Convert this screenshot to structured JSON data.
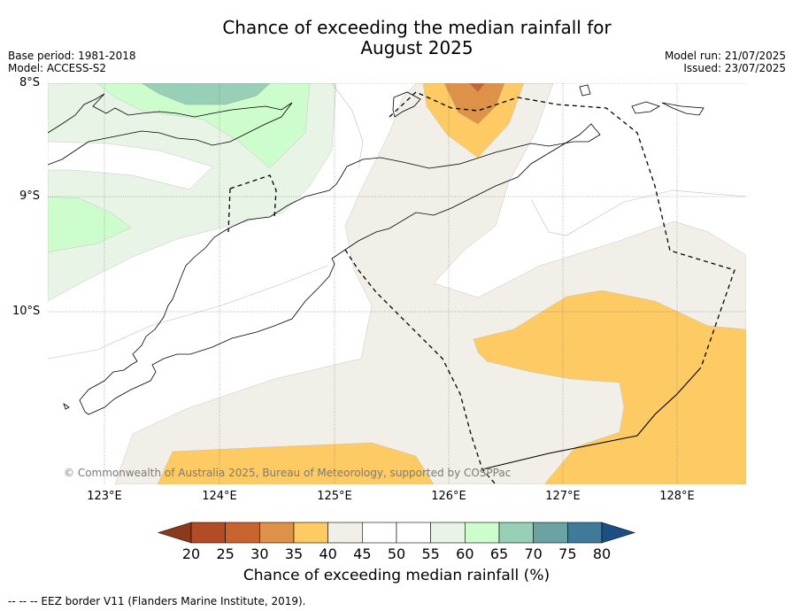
{
  "title_line1": "Chance of exceeding the median rainfall for",
  "title_line2": "August 2025",
  "base_period": "Base period: 1981-2018",
  "model": "Model: ACCESS-S2",
  "model_run": "Model run: 21/07/2025",
  "issued": "Issued: 23/07/2025",
  "latitudes": [
    "8°S",
    "9°S",
    "10°S"
  ],
  "longitudes": [
    "123°E",
    "124°E",
    "125°E",
    "126°E",
    "127°E",
    "128°E"
  ],
  "copyright": "© Commonwealth of Australia 2025, Bureau of Meteorology, supported by COSPPac",
  "colorbar": {
    "ticks": [
      "20",
      "25",
      "30",
      "35",
      "40",
      "45",
      "50",
      "55",
      "60",
      "65",
      "70",
      "75",
      "80"
    ],
    "colors": [
      "#8b3a1e",
      "#b24b26",
      "#c96431",
      "#de9148",
      "#fdca64",
      "#f2eee8",
      "#ffffff",
      "#ffffff",
      "#e8f5e6",
      "#cdfccd",
      "#98cfb7",
      "#6ba3a3",
      "#3f7a99",
      "#1d4f82"
    ],
    "label": "Chance of exceeding median rainfall (%)"
  },
  "footnote": "--  --  -- EEZ border V11 (Flanders Marine Institute, 2019)."
}
